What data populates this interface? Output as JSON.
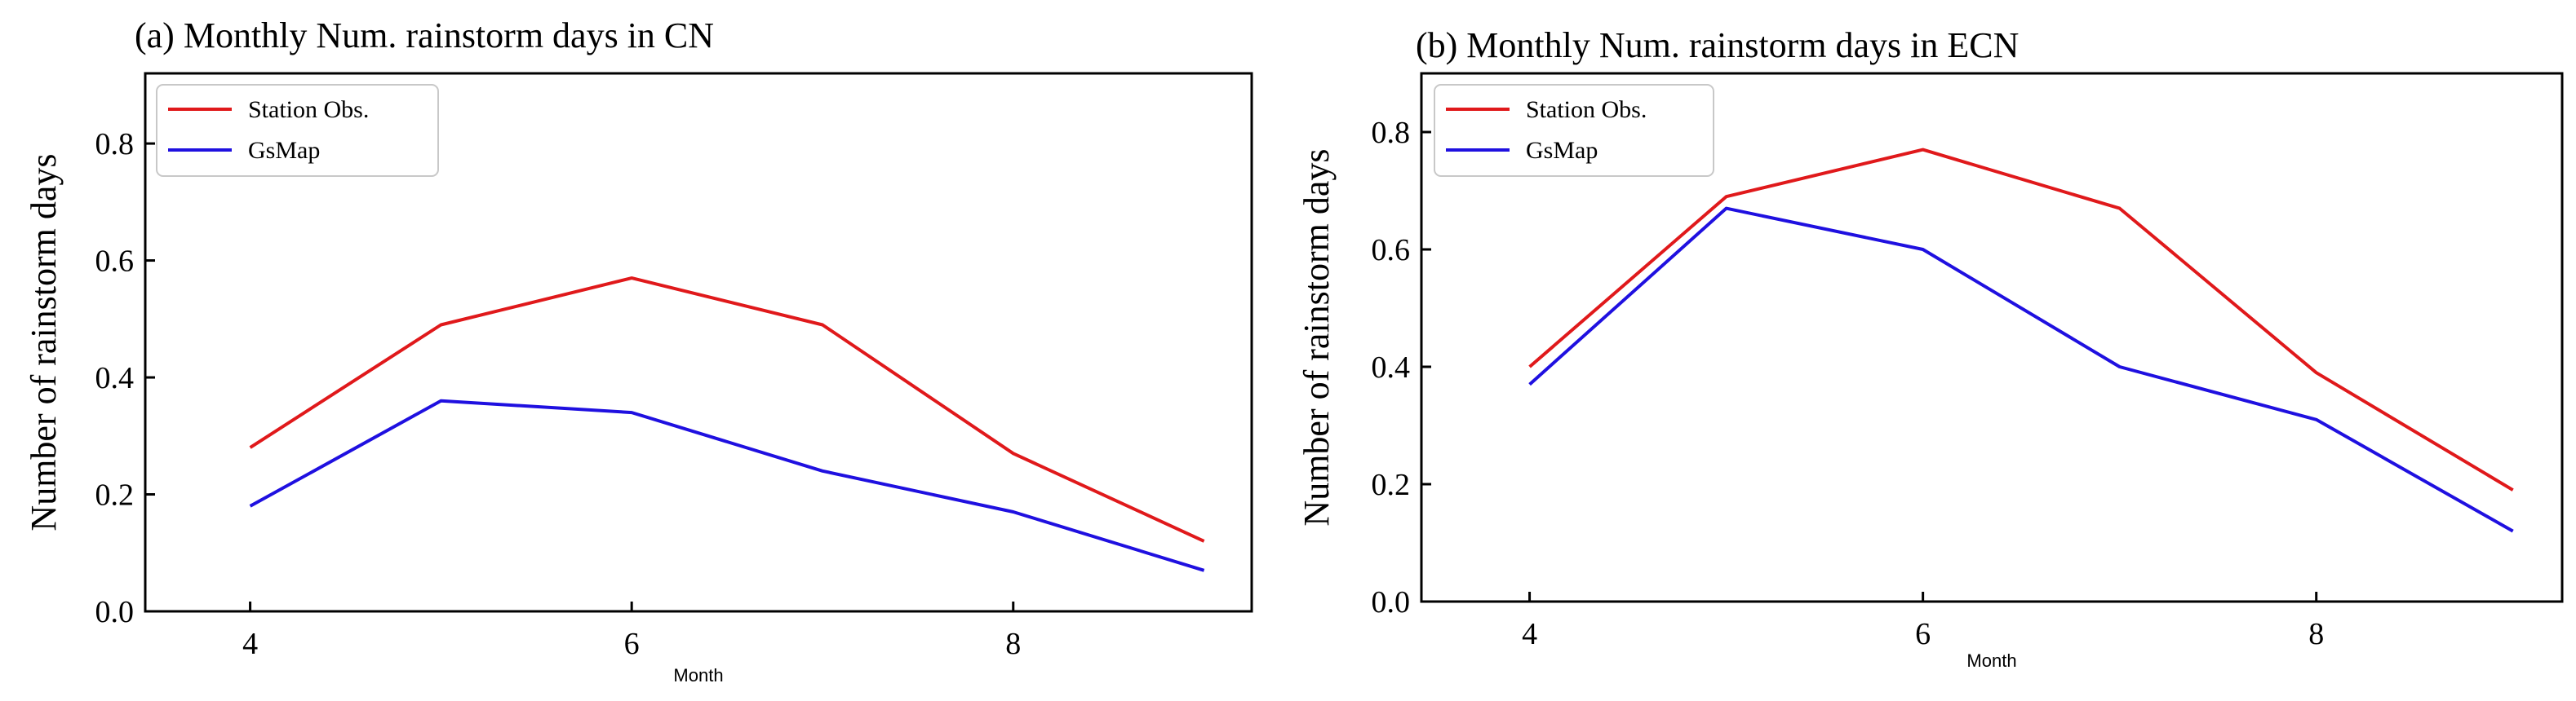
{
  "chart_data": [
    {
      "type": "line",
      "title": "(a) Monthly Num. rainstorm days in CN",
      "xlabel": "Month",
      "ylabel": "Number of rainstorm days",
      "x": [
        4,
        5,
        6,
        7,
        8,
        9
      ],
      "xlim": [
        3.45,
        9.25
      ],
      "xticks": [
        4,
        6,
        8
      ],
      "ylim": [
        0,
        0.92
      ],
      "yticks": [
        "0.0",
        "0.2",
        "0.4",
        "0.6",
        "0.8"
      ],
      "legend_position": "top-left",
      "series": [
        {
          "name": "Station Obs.",
          "color": "#e0191b",
          "values": [
            0.28,
            0.49,
            0.57,
            0.49,
            0.27,
            0.12
          ]
        },
        {
          "name": "GsMap",
          "color": "#1f10e0",
          "values": [
            0.18,
            0.36,
            0.34,
            0.24,
            0.17,
            0.07
          ]
        }
      ]
    },
    {
      "type": "line",
      "title": "(b) Monthly Num. rainstorm days in ECN",
      "xlabel": "Month",
      "ylabel": "Number of rainstorm days",
      "x": [
        4,
        5,
        6,
        7,
        8,
        9
      ],
      "xlim": [
        3.45,
        9.25
      ],
      "xticks": [
        4,
        6,
        8
      ],
      "ylim": [
        0,
        0.9
      ],
      "yticks": [
        "0.0",
        "0.2",
        "0.4",
        "0.6",
        "0.8"
      ],
      "legend_position": "top-left",
      "series": [
        {
          "name": "Station Obs.",
          "color": "#e0191b",
          "values": [
            0.4,
            0.69,
            0.77,
            0.67,
            0.39,
            0.19
          ]
        },
        {
          "name": "GsMap",
          "color": "#1f10e0",
          "values": [
            0.37,
            0.67,
            0.6,
            0.4,
            0.31,
            0.12
          ]
        }
      ]
    }
  ]
}
